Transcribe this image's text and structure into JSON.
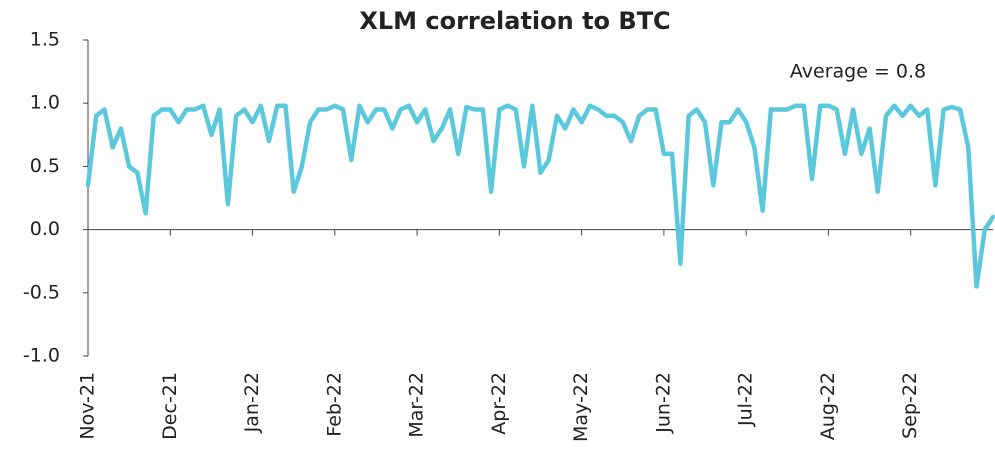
{
  "chart_data": {
    "type": "line",
    "title": "XLM correlation to BTC",
    "annotation": "Average = 0.8",
    "categories": [
      "Nov-21",
      null,
      null,
      null,
      null,
      null,
      null,
      null,
      null,
      null,
      "Dec-21",
      null,
      null,
      null,
      null,
      null,
      null,
      null,
      null,
      null,
      "Jan-22",
      null,
      null,
      null,
      null,
      null,
      null,
      null,
      null,
      null,
      "Feb-22",
      null,
      null,
      null,
      null,
      null,
      null,
      null,
      null,
      null,
      "Mar-22",
      null,
      null,
      null,
      null,
      null,
      null,
      null,
      null,
      null,
      "Apr-22",
      null,
      null,
      null,
      null,
      null,
      null,
      null,
      null,
      null,
      "May-22",
      null,
      null,
      null,
      null,
      null,
      null,
      null,
      null,
      null,
      "Jun-22",
      null,
      null,
      null,
      null,
      null,
      null,
      null,
      null,
      null,
      "Jul-22",
      null,
      null,
      null,
      null,
      null,
      null,
      null,
      null,
      null,
      "Aug-22",
      null,
      null,
      null,
      null,
      null,
      null,
      null,
      null,
      null,
      "Sep-22",
      null,
      null,
      null,
      null,
      null,
      null,
      null,
      null,
      null,
      null
    ],
    "series": [
      {
        "name": "XLM correlation to BTC",
        "color": "#5bc8dc",
        "values": [
          0.35,
          0.9,
          0.95,
          0.65,
          0.8,
          0.5,
          0.45,
          0.13,
          0.9,
          0.95,
          0.95,
          0.85,
          0.95,
          0.95,
          0.98,
          0.75,
          0.95,
          0.2,
          0.9,
          0.95,
          0.85,
          0.98,
          0.7,
          0.98,
          0.98,
          0.3,
          0.5,
          0.85,
          0.95,
          0.95,
          0.98,
          0.95,
          0.55,
          0.98,
          0.85,
          0.95,
          0.95,
          0.8,
          0.95,
          0.98,
          0.85,
          0.95,
          0.7,
          0.8,
          0.95,
          0.6,
          0.97,
          0.95,
          0.95,
          0.3,
          0.95,
          0.98,
          0.95,
          0.5,
          0.98,
          0.45,
          0.55,
          0.9,
          0.8,
          0.95,
          0.85,
          0.98,
          0.95,
          0.9,
          0.9,
          0.85,
          0.7,
          0.9,
          0.95,
          0.95,
          0.6,
          0.6,
          -0.27,
          0.9,
          0.95,
          0.85,
          0.35,
          0.85,
          0.85,
          0.95,
          0.85,
          0.65,
          0.15,
          0.95,
          0.95,
          0.95,
          0.98,
          0.98,
          0.4,
          0.98,
          0.98,
          0.95,
          0.6,
          0.95,
          0.6,
          0.8,
          0.3,
          0.9,
          0.98,
          0.9,
          0.98,
          0.9,
          0.95,
          0.35,
          0.95,
          0.97,
          0.95,
          0.65,
          -0.45,
          0.0,
          0.1
        ]
      }
    ],
    "ylim": [
      -1.0,
      1.5
    ],
    "yticks": [
      1.5,
      {
        "value": 1.0,
        "label": "1.0"
      },
      0.5,
      {
        "value": 0.0,
        "label": "0.0"
      },
      -0.5,
      {
        "value": -1.0,
        "label": "-1.0"
      }
    ]
  }
}
